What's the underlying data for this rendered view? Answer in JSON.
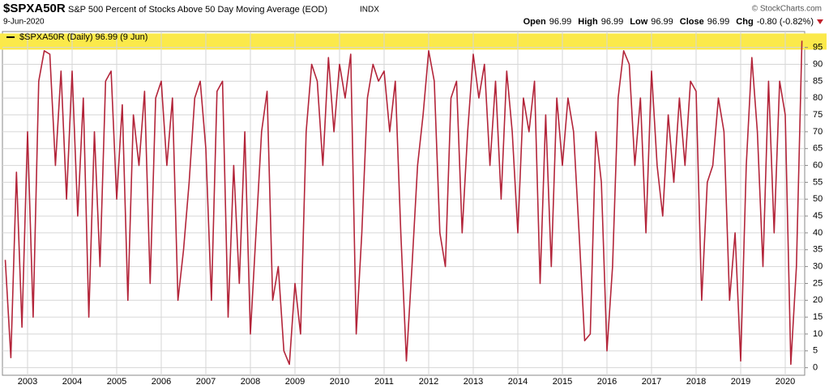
{
  "chart_data": {
    "type": "line",
    "symbol": "$SPXA50R",
    "title": "S&P 500 Percent of Stocks Above 50 Day Moving Average (EOD)",
    "exchange": "INDX",
    "date": "9-Jun-2020",
    "source": "© StockCharts.com",
    "quote": [
      {
        "label": "Open",
        "value": "96.99"
      },
      {
        "label": "High",
        "value": "96.99"
      },
      {
        "label": "Low",
        "value": "96.99"
      },
      {
        "label": "Close",
        "value": "96.99"
      },
      {
        "label": "Chg",
        "value": "-0.80 (-0.82%)"
      }
    ],
    "legend_label": "$SPXA50R (Daily) 96.99 (9 Jun)",
    "categories": [
      null,
      null,
      null,
      null,
      "2003",
      null,
      null,
      null,
      null,
      null,
      null,
      null,
      "2004",
      null,
      null,
      null,
      null,
      null,
      null,
      null,
      "2005",
      null,
      null,
      null,
      null,
      null,
      null,
      null,
      "2006",
      null,
      null,
      null,
      null,
      null,
      null,
      null,
      "2007",
      null,
      null,
      null,
      null,
      null,
      null,
      null,
      "2008",
      null,
      null,
      null,
      null,
      null,
      null,
      null,
      "2009",
      null,
      null,
      null,
      null,
      null,
      null,
      null,
      "2010",
      null,
      null,
      null,
      null,
      null,
      null,
      null,
      "2011",
      null,
      null,
      null,
      null,
      null,
      null,
      null,
      "2012",
      null,
      null,
      null,
      null,
      null,
      null,
      null,
      "2013",
      null,
      null,
      null,
      null,
      null,
      null,
      null,
      "2014",
      null,
      null,
      null,
      null,
      null,
      null,
      null,
      "2015",
      null,
      null,
      null,
      null,
      null,
      null,
      null,
      "2016",
      null,
      null,
      null,
      null,
      null,
      null,
      null,
      "2017",
      null,
      null,
      null,
      null,
      null,
      null,
      null,
      "2018",
      null,
      null,
      null,
      null,
      null,
      null,
      null,
      "2019",
      null,
      null,
      null,
      null,
      null,
      null,
      null,
      "2020",
      null,
      null,
      null
    ],
    "series": [
      {
        "name": "$SPXA50R",
        "color": "#b3253a",
        "values": [
          32,
          3,
          58,
          12,
          70,
          15,
          85,
          94,
          93,
          60,
          88,
          50,
          88,
          45,
          80,
          15,
          70,
          30,
          85,
          88,
          50,
          78,
          20,
          75,
          60,
          82,
          25,
          80,
          85,
          60,
          80,
          20,
          35,
          55,
          80,
          85,
          65,
          20,
          82,
          85,
          15,
          60,
          25,
          70,
          10,
          40,
          70,
          82,
          20,
          30,
          5,
          1,
          25,
          10,
          70,
          90,
          85,
          60,
          92,
          70,
          90,
          80,
          93,
          10,
          40,
          80,
          90,
          85,
          88,
          70,
          85,
          40,
          2,
          30,
          60,
          75,
          94,
          85,
          40,
          30,
          80,
          85,
          40,
          70,
          93,
          80,
          90,
          60,
          85,
          50,
          88,
          70,
          40,
          80,
          70,
          85,
          25,
          75,
          30,
          80,
          60,
          80,
          70,
          40,
          8,
          10,
          70,
          55,
          5,
          30,
          80,
          94,
          90,
          60,
          80,
          40,
          88,
          60,
          45,
          75,
          55,
          80,
          60,
          85,
          82,
          20,
          55,
          60,
          80,
          70,
          20,
          40,
          2,
          60,
          92,
          70,
          30,
          85,
          40,
          85,
          75,
          1,
          30,
          96.99
        ]
      }
    ],
    "ylim": [
      -2,
      99
    ],
    "yticks": [
      0,
      5,
      10,
      15,
      20,
      25,
      30,
      35,
      40,
      45,
      50,
      55,
      60,
      65,
      70,
      75,
      80,
      85,
      90,
      95
    ],
    "grid": true
  }
}
